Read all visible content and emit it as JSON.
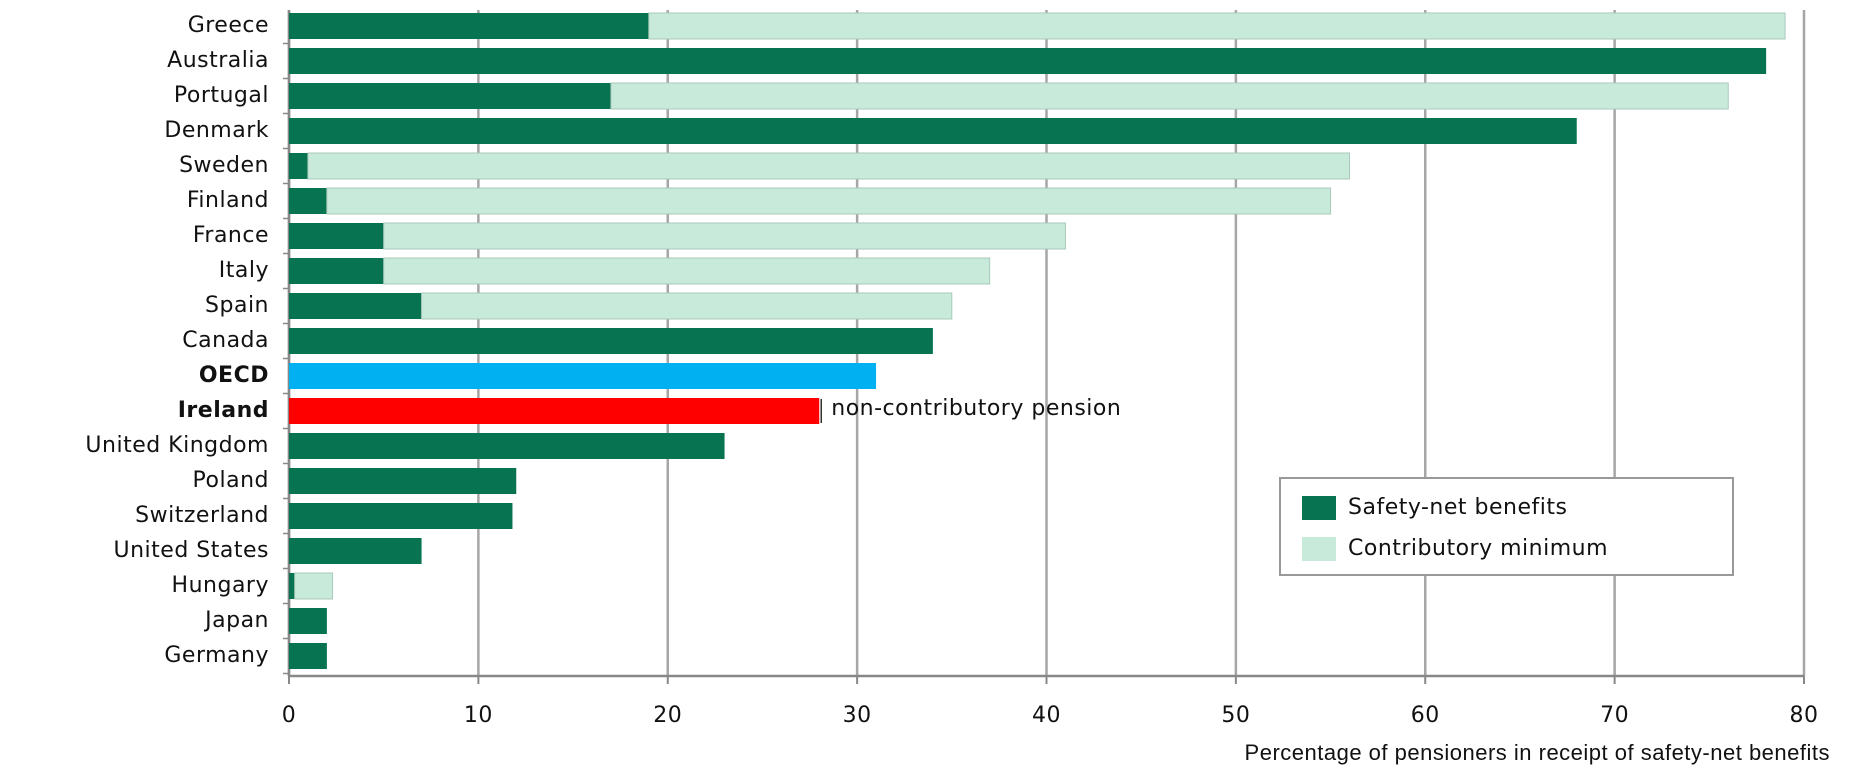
{
  "chart_data": {
    "type": "stacked-bar-horizontal",
    "categories": [
      "Greece",
      "Australia",
      "Portugal",
      "Denmark",
      "Sweden",
      "Finland",
      "France",
      "Italy",
      "Spain",
      "Canada",
      "OECD",
      "Ireland",
      "United Kingdom",
      "Poland",
      "Switzerland",
      "United States",
      "Hungary",
      "Japan",
      "Germany"
    ],
    "bold_categories": [
      "OECD",
      "Ireland"
    ],
    "series": [
      {
        "name": "Safety-net benefits",
        "color": "#077350",
        "point_colors": [
          "#077350",
          "#077350",
          "#077350",
          "#077350",
          "#077350",
          "#077350",
          "#077350",
          "#077350",
          "#077350",
          "#077350",
          "#00b0f0",
          "#ff0000",
          "#077350",
          "#077350",
          "#077350",
          "#077350",
          "#077350",
          "#077350",
          "#077350"
        ],
        "values": [
          19,
          78,
          17,
          68,
          1,
          2,
          5,
          5,
          7,
          34,
          31,
          28,
          23,
          12,
          11.8,
          7,
          0.3,
          2,
          2
        ]
      },
      {
        "name": "Contributory minimum",
        "color": "#c8eadb",
        "values": [
          60,
          0,
          59,
          0,
          55,
          53,
          36,
          32,
          28,
          0,
          0,
          0,
          0,
          0,
          0,
          0,
          2,
          0,
          0
        ]
      }
    ],
    "annotations": [
      {
        "text": "non-contributory pension",
        "category": "Ireland"
      }
    ],
    "x_label": "Percentage of pensioners in receipt of safety-net benefits",
    "xlim": [
      0,
      80
    ],
    "xticks": [
      0,
      10,
      20,
      30,
      40,
      50,
      60,
      70,
      80
    ],
    "grid": true,
    "legend": "lower right"
  }
}
